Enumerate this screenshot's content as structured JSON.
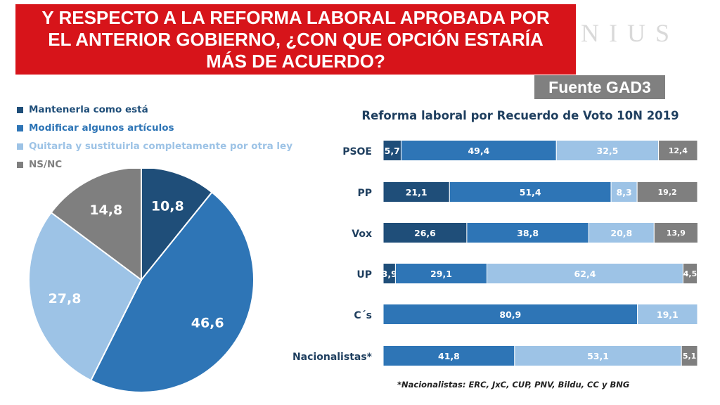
{
  "header": {
    "title": "Y RESPECTO A LA REFORMA LABORAL APROBADA POR EL ANTERIOR GOBIERNO, ¿CON QUE OPCIÓN ESTARÍA MÁS DE ACUERDO?",
    "brand": "NIUS",
    "source": "Fuente GAD3"
  },
  "colors": {
    "title_bg": "#d7141a",
    "mantener": "#1f4e79",
    "modificar": "#2e75b6",
    "quitar": "#9dc3e6",
    "nsnc": "#7f7f7f"
  },
  "footnote": "*Nacionalistas: ERC, JxC, CUP, PNV, Bildu, CC y BNG",
  "chart_data": [
    {
      "type": "pie",
      "legend": [
        "Mantenerla como está",
        "Modificar algunos artículos",
        "Quitarla y sustituirla completamente por otra ley",
        "NS/NC"
      ],
      "values": [
        10.8,
        46.6,
        27.8,
        14.8
      ],
      "labels": [
        "10,8",
        "46,6",
        "27,8",
        "14,8"
      ],
      "legend_position": "top-left"
    },
    {
      "type": "bar",
      "orientation": "horizontal-stacked-100",
      "title": "Reforma laboral por Recuerdo de Voto 10N 2019",
      "categories": [
        "PSOE",
        "PP",
        "Vox",
        "UP",
        "C´s",
        "Nacionalistas*"
      ],
      "series": [
        {
          "name": "Mantenerla como está",
          "values": [
            5.7,
            21.1,
            26.6,
            3.9,
            0,
            0
          ],
          "labels": [
            "5,7",
            "21,1",
            "26,6",
            "3,9",
            "",
            ""
          ]
        },
        {
          "name": "Modificar algunos artículos",
          "values": [
            49.4,
            51.4,
            38.8,
            29.1,
            80.9,
            41.8
          ],
          "labels": [
            "49,4",
            "51,4",
            "38,8",
            "29,1",
            "80,9",
            "41,8"
          ]
        },
        {
          "name": "Quitarla y sustituirla completamente por otra ley",
          "values": [
            32.5,
            8.3,
            20.8,
            62.4,
            19.1,
            53.1
          ],
          "labels": [
            "32,5",
            "8,3",
            "20,8",
            "62,4",
            "19,1",
            "53,1"
          ]
        },
        {
          "name": "NS/NC",
          "values": [
            12.4,
            19.2,
            13.9,
            4.5,
            0,
            5.1
          ],
          "labels": [
            "12,4",
            "19,2",
            "13,9",
            "4,5",
            "",
            "5,1"
          ]
        }
      ]
    }
  ]
}
